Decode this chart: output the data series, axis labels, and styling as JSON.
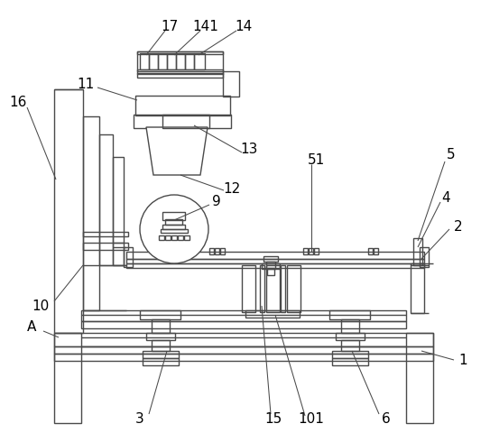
{
  "bg_color": "#ffffff",
  "line_color": "#4a4a4a",
  "lw": 1.0,
  "fig_width": 5.43,
  "fig_height": 4.81
}
